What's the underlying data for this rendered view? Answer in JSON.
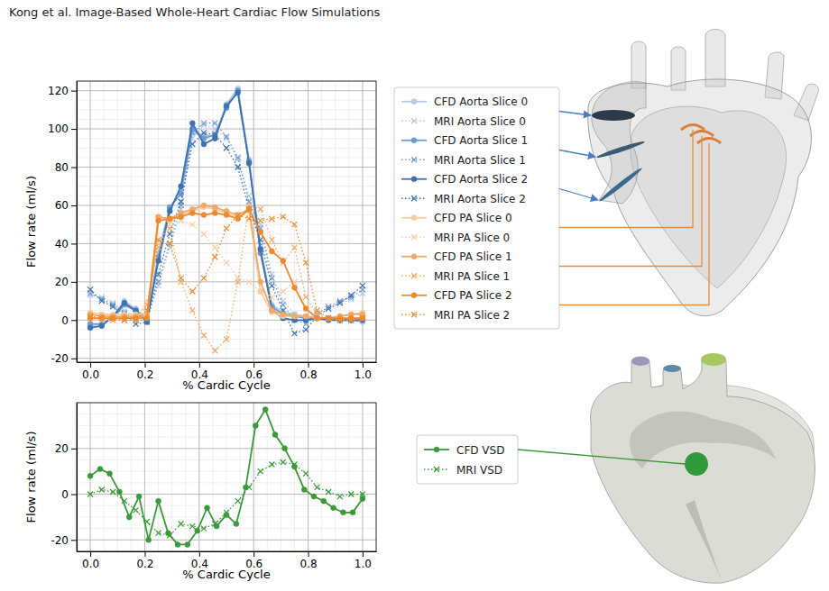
{
  "header": {
    "text": "Kong et al. Image-Based Whole-Heart Cardiac Flow Simulations"
  },
  "chart_data": [
    {
      "type": "line",
      "x_label": "% Cardic Cycle",
      "y_label": "Flow rate (ml/s)",
      "xlim": [
        -0.05,
        1.05
      ],
      "ylim": [
        -22,
        125
      ],
      "xticks": [
        {
          "value": 0,
          "label": "0.0"
        },
        0.2,
        0.4,
        0.6,
        0.8,
        {
          "value": 1,
          "label": "1.0"
        }
      ],
      "yticks": [
        -20,
        0,
        20,
        40,
        60,
        80,
        100,
        120
      ],
      "grid": true,
      "legend": "right",
      "x": [
        0,
        0.042,
        0.083,
        0.125,
        0.167,
        0.208,
        0.25,
        0.292,
        0.333,
        0.375,
        0.417,
        0.458,
        0.5,
        0.542,
        0.583,
        0.625,
        0.667,
        0.708,
        0.75,
        0.792,
        0.833,
        0.875,
        0.917,
        0.958,
        1
      ],
      "series": [
        {
          "name": "CFD Aorta Slice 0",
          "color": "#b3c9e4",
          "marker": "o",
          "line_style": "solid",
          "values": [
            -3,
            -2,
            2,
            10,
            6,
            0,
            35,
            59,
            67,
            98,
            97,
            96,
            113,
            121,
            84,
            38,
            8,
            4,
            3,
            2,
            1,
            1,
            0,
            0,
            -1
          ]
        },
        {
          "name": "MRI Aorta Slice 0",
          "color": "#b3c9e4",
          "marker": "x",
          "line_style": "dotted",
          "values": [
            13,
            12,
            9,
            5,
            2,
            1,
            18,
            38,
            58,
            95,
            102,
            100,
            95,
            84,
            65,
            50,
            24,
            10,
            3,
            1,
            4,
            6,
            9,
            11,
            14
          ]
        },
        {
          "name": "CFD Aorta Slice 1",
          "color": "#6f9acf",
          "marker": "o",
          "line_style": "solid",
          "values": [
            -2,
            -2,
            1,
            8,
            5,
            0,
            33,
            59,
            66,
            100,
            95,
            97,
            111,
            120,
            83,
            35,
            7,
            3,
            2,
            1,
            1,
            1,
            0,
            0,
            0
          ]
        },
        {
          "name": "MRI Aorta Slice 1",
          "color": "#6f9acf",
          "marker": "x",
          "line_style": "dotted",
          "values": [
            14,
            11,
            8,
            4,
            0,
            0,
            20,
            40,
            60,
            98,
            103,
            103,
            96,
            85,
            62,
            48,
            22,
            8,
            0,
            -2,
            3,
            7,
            10,
            12,
            16
          ]
        },
        {
          "name": "CFD Aorta Slice 2",
          "color": "#3c71b3",
          "marker": "o",
          "line_style": "solid",
          "values": [
            -4,
            -3,
            2,
            9,
            5,
            -1,
            31,
            57,
            70,
            103,
            92,
            95,
            112,
            119,
            82,
            37,
            5,
            1,
            0,
            0,
            1,
            0,
            0,
            0,
            0
          ]
        },
        {
          "name": "MRI Aorta Slice 2",
          "color": "#3c71b3",
          "marker": "x",
          "line_style": "dotted",
          "values": [
            16,
            10,
            7,
            3,
            -2,
            -1,
            24,
            45,
            62,
            92,
            98,
            97,
            90,
            80,
            58,
            42,
            18,
            5,
            -7,
            -5,
            2,
            6,
            9,
            13,
            18
          ]
        },
        {
          "name": "CFD PA Slice 0",
          "color": "#f7cda6",
          "marker": "o",
          "line_style": "solid",
          "values": [
            4,
            3,
            3,
            3,
            3,
            3,
            54,
            52,
            55,
            57,
            59,
            58,
            56,
            54,
            57,
            15,
            4,
            2,
            2,
            2,
            1,
            1,
            2,
            3,
            4
          ]
        },
        {
          "name": "MRI PA Slice 0",
          "color": "#f7cda6",
          "marker": "x",
          "line_style": "dotted",
          "values": [
            1,
            0,
            0,
            0,
            0,
            10,
            40,
            50,
            52,
            50,
            45,
            38,
            30,
            22,
            20,
            15,
            12,
            15,
            20,
            6,
            2,
            1,
            0,
            0,
            1
          ]
        },
        {
          "name": "CFD PA Slice 1",
          "color": "#f2a866",
          "marker": "o",
          "line_style": "solid",
          "values": [
            3,
            2,
            2,
            2,
            2,
            2,
            54,
            53,
            56,
            58,
            60,
            59,
            57,
            55,
            58,
            20,
            5,
            3,
            2,
            2,
            1,
            1,
            2,
            3,
            3
          ]
        },
        {
          "name": "MRI PA Slice 1",
          "color": "#f2a866",
          "marker": "x",
          "line_style": "dotted",
          "values": [
            1,
            1,
            0,
            0,
            0,
            8,
            38,
            48,
            20,
            5,
            -8,
            -16,
            -10,
            20,
            60,
            58,
            42,
            30,
            38,
            12,
            3,
            1,
            0,
            0,
            1
          ]
        },
        {
          "name": "CFD PA Slice 2",
          "color": "#ec8a2f",
          "marker": "o",
          "line_style": "solid",
          "values": [
            1,
            1,
            1,
            1,
            1,
            1,
            52,
            53,
            54,
            56,
            55,
            56,
            55,
            53,
            58,
            46,
            36,
            31,
            17,
            6,
            1,
            1,
            1,
            1,
            1
          ]
        },
        {
          "name": "MRI PA Slice 2",
          "color": "#ec8a2f",
          "marker": "x",
          "line_style": "dotted",
          "values": [
            2,
            1,
            1,
            0,
            0,
            5,
            42,
            40,
            22,
            15,
            22,
            33,
            48,
            55,
            53,
            52,
            53,
            54,
            50,
            30,
            5,
            1,
            0,
            0,
            1
          ]
        }
      ]
    },
    {
      "type": "line",
      "x_label": "% Cardic Cycle",
      "y_label": "Flow rate (ml/s)",
      "xlim": [
        -0.05,
        1.05
      ],
      "ylim": [
        -25,
        40
      ],
      "xticks": [
        {
          "value": 0,
          "label": "0.0"
        },
        0.2,
        0.4,
        0.6,
        0.8,
        {
          "value": 1,
          "label": "1.0"
        }
      ],
      "yticks": [
        -20,
        0,
        20
      ],
      "grid": true,
      "legend": "right",
      "series": [
        {
          "name": "CFD VSD",
          "color": "#3a9a3a",
          "marker": "o",
          "line_style": "solid",
          "x": [
            0,
            0.036,
            0.071,
            0.107,
            0.143,
            0.179,
            0.214,
            0.25,
            0.286,
            0.321,
            0.357,
            0.393,
            0.429,
            0.464,
            0.5,
            0.536,
            0.571,
            0.607,
            0.643,
            0.679,
            0.714,
            0.75,
            0.786,
            0.821,
            0.857,
            0.893,
            0.929,
            0.964,
            1
          ],
          "values": [
            8,
            11,
            9,
            1,
            -10,
            -1,
            -20,
            -3,
            -17,
            -22,
            -22,
            -16,
            -6,
            -14,
            -9,
            -13,
            3,
            30,
            37,
            26,
            20,
            12,
            2,
            -1,
            -3,
            -6,
            -8,
            -8,
            -2
          ]
        },
        {
          "name": "MRI VSD",
          "color": "#3a9a3a",
          "marker": "x",
          "line_style": "dotted",
          "x": [
            0,
            0.042,
            0.083,
            0.125,
            0.167,
            0.208,
            0.25,
            0.292,
            0.333,
            0.375,
            0.417,
            0.458,
            0.5,
            0.542,
            0.583,
            0.625,
            0.667,
            0.708,
            0.75,
            0.792,
            0.833,
            0.875,
            0.917,
            0.958,
            1
          ],
          "values": [
            0,
            2,
            1,
            -3,
            -7,
            -12,
            -17,
            -18,
            -13,
            -14,
            -15,
            -13,
            -8,
            -3,
            3,
            10,
            13,
            14,
            13,
            9,
            3,
            1,
            -1,
            0,
            0
          ]
        }
      ]
    }
  ]
}
